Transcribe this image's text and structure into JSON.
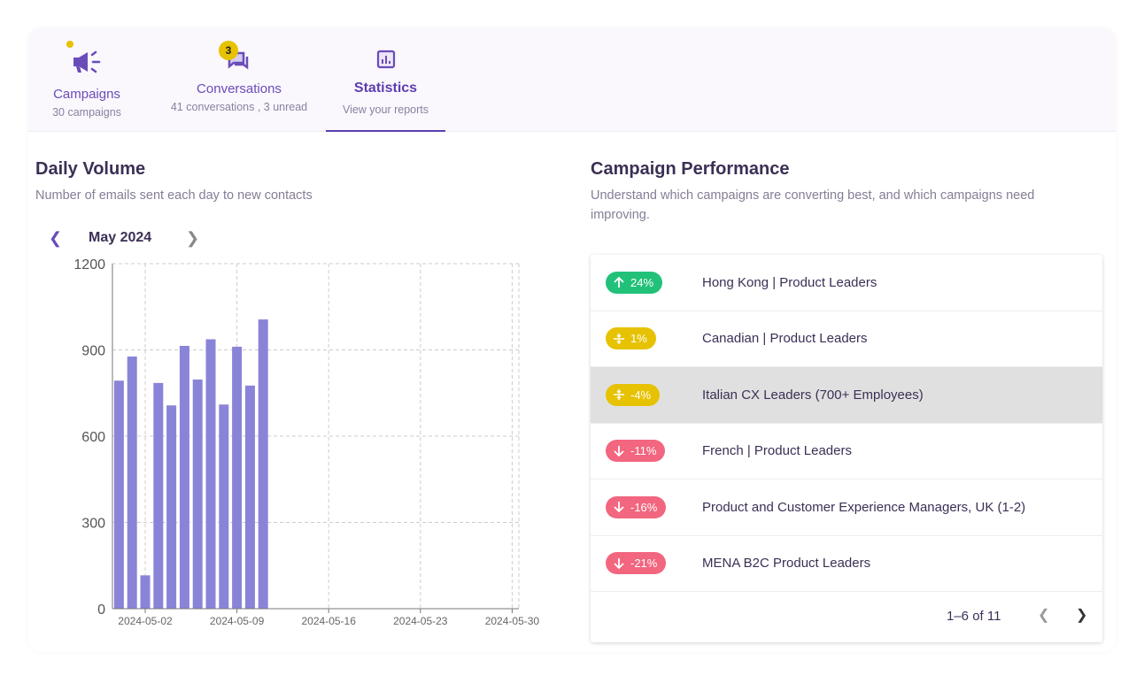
{
  "tabs": [
    {
      "label": "Campaigns",
      "sub": "30 campaigns",
      "icon": "megaphone-icon",
      "dot": true
    },
    {
      "label": "Conversations",
      "sub": "41 conversations , 3 unread",
      "icon": "chat-icon",
      "badge": "3"
    },
    {
      "label": "Statistics",
      "sub": "View your reports",
      "icon": "bar-chart-icon",
      "active": true
    }
  ],
  "daily": {
    "title": "Daily Volume",
    "desc": "Number of emails sent each day to new contacts",
    "month": "May 2024"
  },
  "chart_data": {
    "type": "bar",
    "x": [
      "2024-04-30",
      "2024-05-01",
      "2024-05-02",
      "2024-05-03",
      "2024-05-04",
      "2024-05-05",
      "2024-05-06",
      "2024-05-07",
      "2024-05-08",
      "2024-05-09",
      "2024-05-10",
      "2024-05-11"
    ],
    "values": [
      793,
      877,
      116,
      785,
      707,
      914,
      797,
      937,
      710,
      911,
      776,
      1006
    ],
    "ylim": [
      0,
      1200
    ],
    "yticks": [
      "0",
      "300",
      "600",
      "900",
      "1200"
    ],
    "xticks": [
      "2024-05-02",
      "2024-05-09",
      "2024-05-16",
      "2024-05-23",
      "2024-05-30"
    ],
    "grid": true,
    "color": "#8a84d8"
  },
  "performance": {
    "title": "Campaign Performance",
    "desc": "Understand which campaigns are converting best, and which campaigns need improving.",
    "rows": [
      {
        "change": "24%",
        "trend": "up",
        "name": "Hong Kong | Product Leaders",
        "color": "#22c17a"
      },
      {
        "change": "1%",
        "trend": "flat",
        "name": "Canadian | Product Leaders",
        "color": "#e6c200"
      },
      {
        "change": "-4%",
        "trend": "flat",
        "name": "Italian CX Leaders (700+ Employees)",
        "color": "#e6c200",
        "selected": true
      },
      {
        "change": "-11%",
        "trend": "down",
        "name": "French | Product Leaders",
        "color": "#f2667f"
      },
      {
        "change": "-16%",
        "trend": "down",
        "name": "Product and Customer Experience Managers, UK (1-2)",
        "color": "#f2667f"
      },
      {
        "change": "-21%",
        "trend": "down",
        "name": "MENA B2C Product Leaders",
        "color": "#f2667f"
      }
    ],
    "pagination": "1–6 of 11"
  }
}
